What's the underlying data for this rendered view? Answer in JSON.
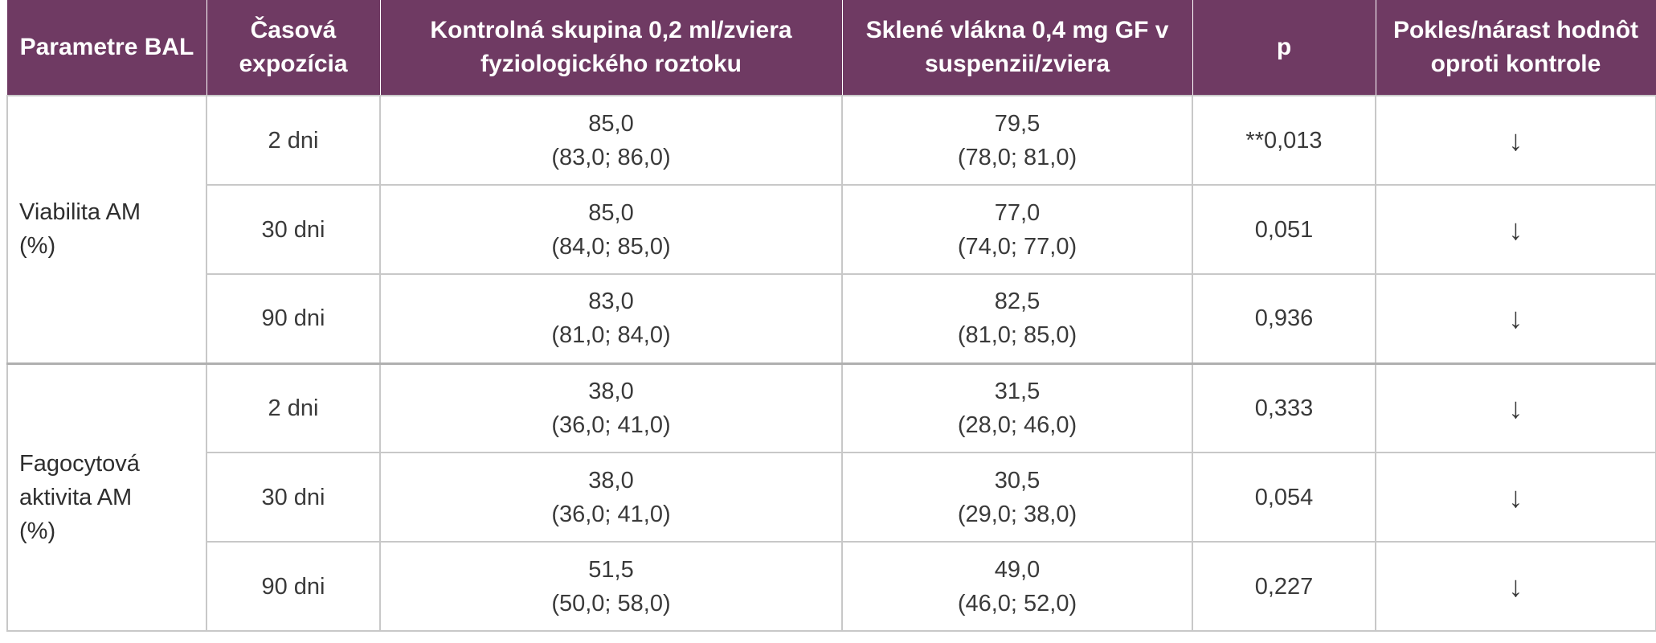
{
  "header": {
    "col1": [
      "Parametre",
      "BAL"
    ],
    "col2": [
      "Časová",
      "expozícia"
    ],
    "col3": [
      "Kontrolná skupina 0,2 ml/zviera",
      "fyziologického roztoku"
    ],
    "col4": [
      "Sklené vlákna 0,4 mg GF",
      "v suspenzii/zviera"
    ],
    "col5": [
      "p"
    ],
    "col6": [
      "Pokles/nárast hodnôt",
      "oproti kontrole"
    ]
  },
  "groups": [
    {
      "param": [
        "Viabilita AM",
        "(%)"
      ],
      "rows": [
        {
          "time": "2 dni",
          "control": [
            "85,0",
            "(83,0; 86,0)"
          ],
          "gf": [
            "79,5",
            "(78,0; 81,0)"
          ],
          "p": "**0,013",
          "trend": "↓"
        },
        {
          "time": "30 dni",
          "control": [
            "85,0",
            "(84,0; 85,0)"
          ],
          "gf": [
            "77,0",
            "(74,0; 77,0)"
          ],
          "p": "0,051",
          "trend": "↓"
        },
        {
          "time": "90 dni",
          "control": [
            "83,0",
            "(81,0; 84,0)"
          ],
          "gf": [
            "82,5",
            "(81,0; 85,0)"
          ],
          "p": "0,936",
          "trend": "↓"
        }
      ]
    },
    {
      "param": [
        "Fagocytová",
        "aktivita AM",
        "(%)"
      ],
      "rows": [
        {
          "time": "2 dni",
          "control": [
            "38,0",
            "(36,0; 41,0)"
          ],
          "gf": [
            "31,5",
            "(28,0; 46,0)"
          ],
          "p": "0,333",
          "trend": "↓"
        },
        {
          "time": "30 dni",
          "control": [
            "38,0",
            "(36,0; 41,0)"
          ],
          "gf": [
            "30,5",
            "(29,0; 38,0)"
          ],
          "p": "0,054",
          "trend": "↓"
        },
        {
          "time": "90 dni",
          "control": [
            "51,5",
            "(50,0; 58,0)"
          ],
          "gf": [
            "49,0",
            "(46,0; 52,0)"
          ],
          "p": "0,227",
          "trend": "↓"
        }
      ]
    }
  ]
}
